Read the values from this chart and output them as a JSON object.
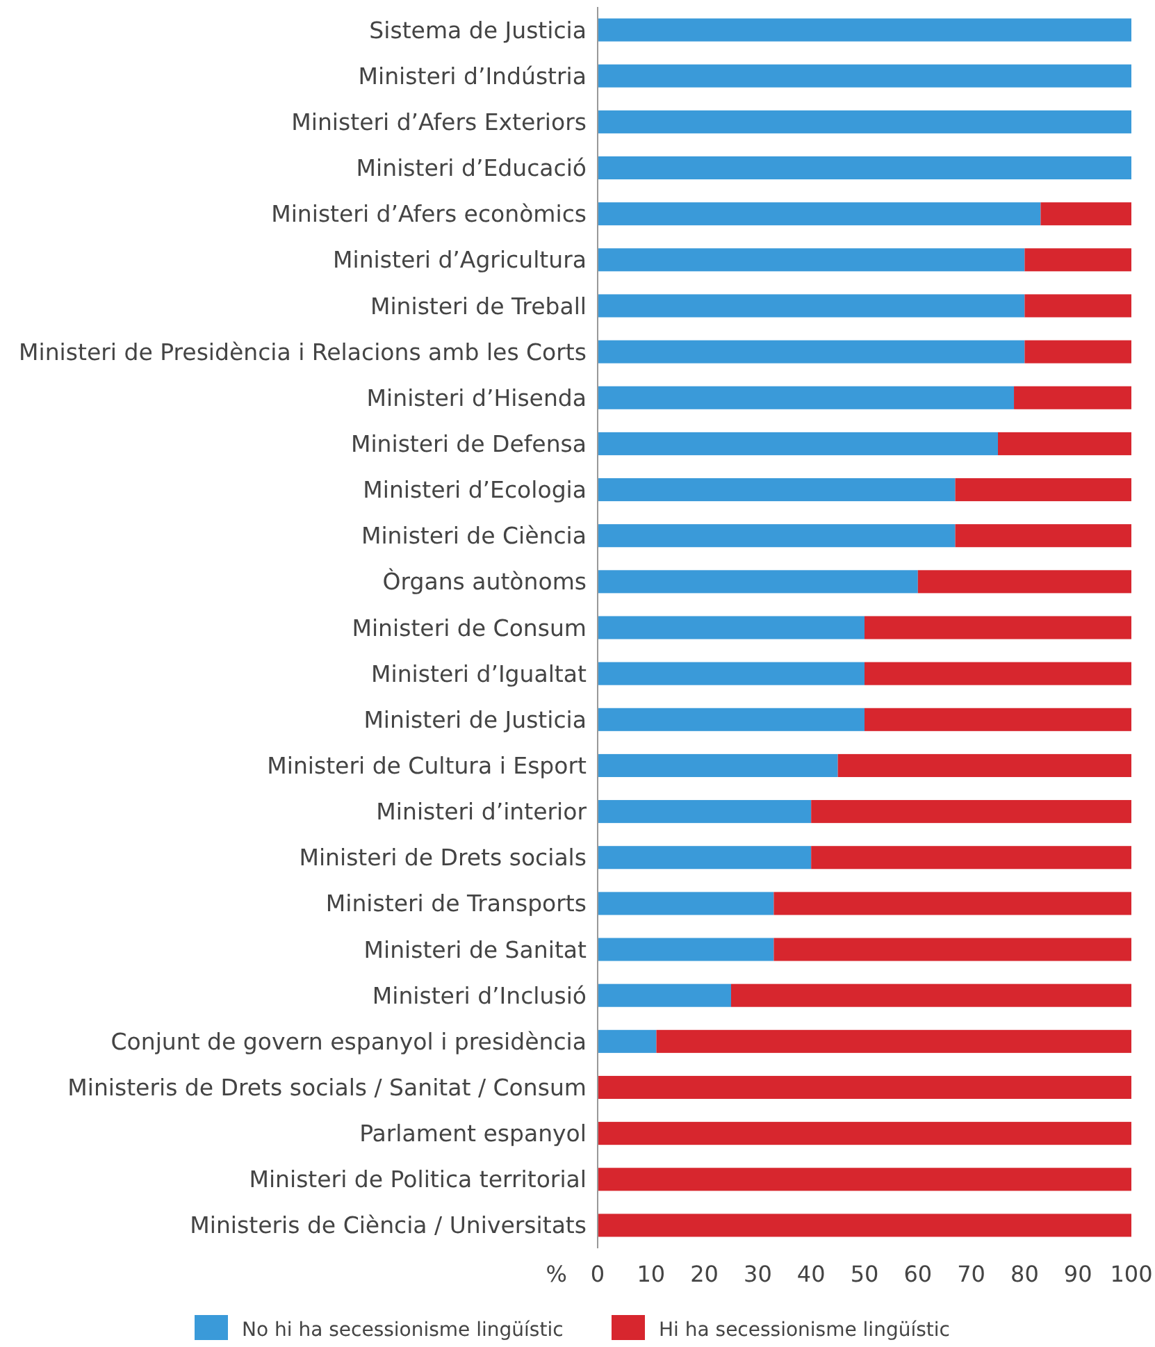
{
  "chart_data": {
    "type": "bar",
    "orientation": "horizontal",
    "stacked": true,
    "categories": [
      "Sistema de Justicia",
      "Ministeri d’Indústria",
      "Ministeri d’Afers Exteriors",
      "Ministeri d’Educació",
      "Ministeri d’Afers econòmics",
      "Ministeri d’Agricultura",
      "Ministeri de Treball",
      "Ministeri de Presidència i Relacions amb les Corts",
      "Ministeri d’Hisenda",
      "Ministeri de Defensa",
      "Ministeri d’Ecologia",
      "Ministeri de Ciència",
      "Òrgans autònoms",
      "Ministeri de Consum",
      "Ministeri d’Igualtat",
      "Ministeri de Justicia",
      "Ministeri de Cultura i Esport",
      "Ministeri d’interior",
      "Ministeri de Drets socials",
      "Ministeri de Transports",
      "Ministeri de Sanitat",
      "Ministeri d’Inclusió",
      "Conjunt de govern espanyol i presidència",
      "Ministeris de Drets socials / Sanitat / Consum",
      "Parlament espanyol",
      "Ministeri de Politica territorial",
      "Ministeris de Ciència / Universitats"
    ],
    "series": [
      {
        "name": "No hi ha secessionisme lingüístic",
        "color": "#3a9ad9",
        "values": [
          100,
          100,
          100,
          100,
          83,
          80,
          80,
          80,
          78,
          75,
          67,
          67,
          60,
          50,
          50,
          50,
          45,
          40,
          40,
          33,
          33,
          25,
          11,
          0,
          0,
          0,
          0
        ]
      },
      {
        "name": "Hi ha secessionisme lingüístic",
        "color": "#d7262e",
        "values": [
          0,
          0,
          0,
          0,
          17,
          20,
          20,
          20,
          22,
          25,
          33,
          33,
          40,
          50,
          50,
          50,
          55,
          60,
          60,
          67,
          67,
          75,
          89,
          100,
          100,
          100,
          100
        ]
      }
    ],
    "xlabel": "%",
    "xlim": [
      0,
      100
    ],
    "xticks": [
      0,
      10,
      20,
      30,
      40,
      50,
      60,
      70,
      80,
      90,
      100
    ],
    "grid": false,
    "legend": "bottom"
  }
}
